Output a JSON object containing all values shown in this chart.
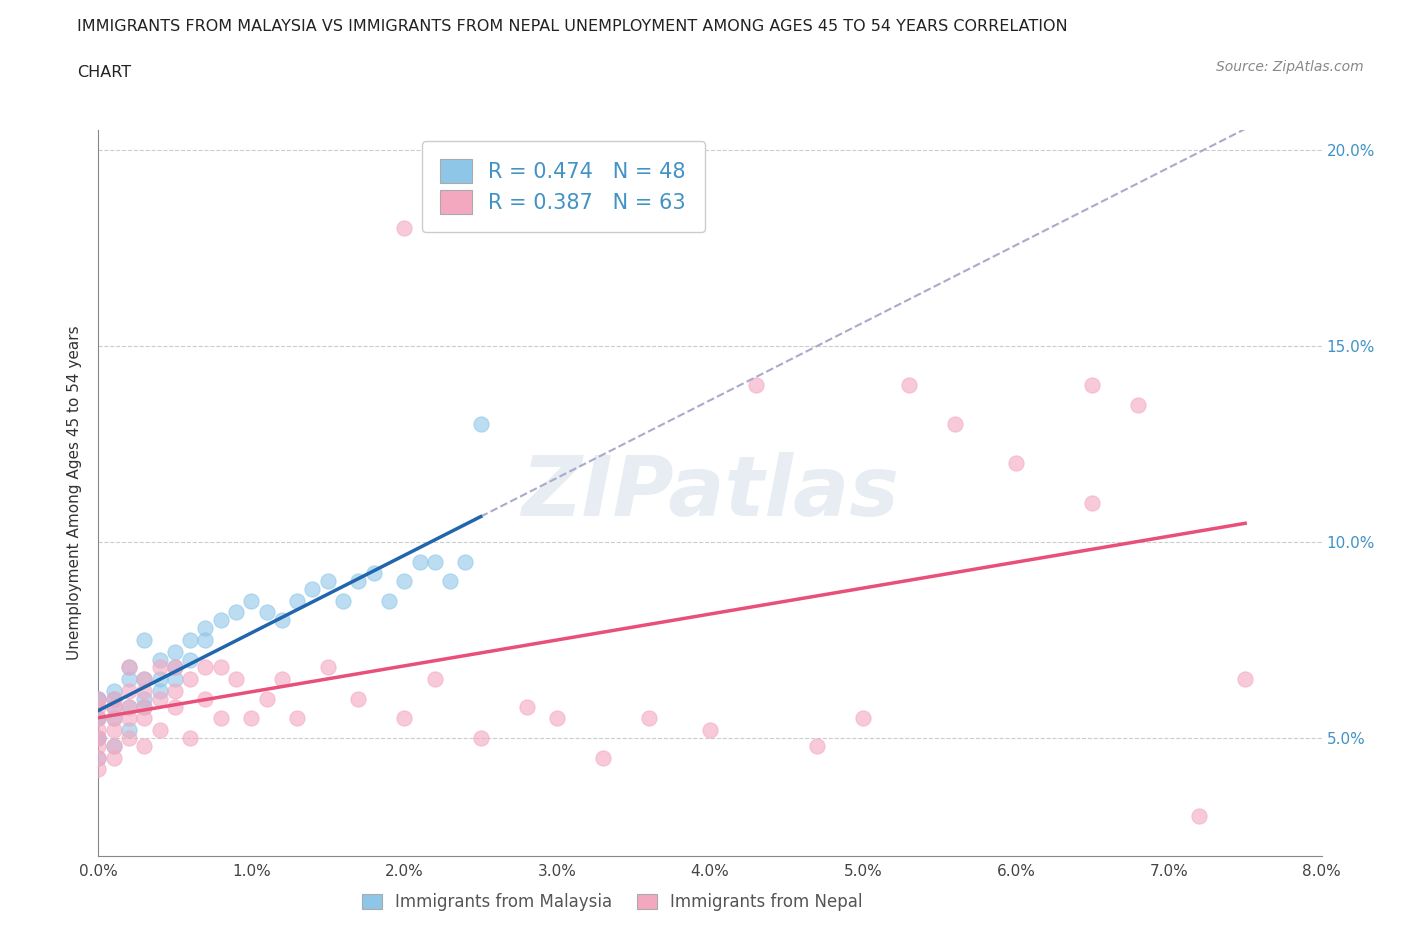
{
  "title_line1": "IMMIGRANTS FROM MALAYSIA VS IMMIGRANTS FROM NEPAL UNEMPLOYMENT AMONG AGES 45 TO 54 YEARS CORRELATION",
  "title_line2": "CHART",
  "source_text": "Source: ZipAtlas.com",
  "ylabel": "Unemployment Among Ages 45 to 54 years",
  "legend_label1": "Immigrants from Malaysia",
  "legend_label2": "Immigrants from Nepal",
  "R1": 0.474,
  "N1": 48,
  "R2": 0.387,
  "N2": 63,
  "color_malaysia": "#8ec6e8",
  "color_nepal": "#f4a8c0",
  "color_trend1": "#2166ac",
  "color_trend2": "#e8507a",
  "color_trend_dash": "#aaaacc",
  "xlim": [
    0.0,
    0.08
  ],
  "ylim": [
    0.02,
    0.205
  ],
  "xticks": [
    0.0,
    0.01,
    0.02,
    0.03,
    0.04,
    0.05,
    0.06,
    0.07,
    0.08
  ],
  "xticklabels": [
    "0.0%",
    "1.0%",
    "2.0%",
    "3.0%",
    "4.0%",
    "5.0%",
    "6.0%",
    "7.0%",
    "8.0%"
  ],
  "yticks": [
    0.05,
    0.1,
    0.15,
    0.2
  ],
  "yticklabels": [
    "5.0%",
    "10.0%",
    "15.0%",
    "20.0%"
  ],
  "watermark": "ZIPatlas",
  "malaysia_x": [
    0.0,
    0.0,
    0.0,
    0.0,
    0.0,
    0.0,
    0.0,
    0.001,
    0.001,
    0.001,
    0.001,
    0.001,
    0.002,
    0.002,
    0.002,
    0.002,
    0.003,
    0.003,
    0.003,
    0.003,
    0.004,
    0.004,
    0.004,
    0.005,
    0.005,
    0.005,
    0.006,
    0.006,
    0.007,
    0.007,
    0.008,
    0.009,
    0.01,
    0.011,
    0.012,
    0.013,
    0.014,
    0.015,
    0.016,
    0.017,
    0.018,
    0.019,
    0.02,
    0.021,
    0.022,
    0.023,
    0.024,
    0.025
  ],
  "malaysia_y": [
    0.055,
    0.06,
    0.05,
    0.045,
    0.055,
    0.06,
    0.05,
    0.058,
    0.062,
    0.055,
    0.048,
    0.06,
    0.065,
    0.058,
    0.052,
    0.068,
    0.065,
    0.075,
    0.06,
    0.058,
    0.07,
    0.065,
    0.062,
    0.072,
    0.068,
    0.065,
    0.075,
    0.07,
    0.075,
    0.078,
    0.08,
    0.082,
    0.085,
    0.082,
    0.08,
    0.085,
    0.088,
    0.09,
    0.085,
    0.09,
    0.092,
    0.085,
    0.09,
    0.095,
    0.095,
    0.09,
    0.095,
    0.13
  ],
  "nepal_x": [
    0.0,
    0.0,
    0.0,
    0.0,
    0.0,
    0.0,
    0.0,
    0.0,
    0.001,
    0.001,
    0.001,
    0.001,
    0.001,
    0.001,
    0.002,
    0.002,
    0.002,
    0.002,
    0.002,
    0.003,
    0.003,
    0.003,
    0.003,
    0.003,
    0.004,
    0.004,
    0.004,
    0.005,
    0.005,
    0.005,
    0.006,
    0.006,
    0.007,
    0.007,
    0.008,
    0.008,
    0.009,
    0.01,
    0.011,
    0.012,
    0.013,
    0.015,
    0.017,
    0.02,
    0.022,
    0.025,
    0.028,
    0.03,
    0.033,
    0.036,
    0.04,
    0.043,
    0.047,
    0.05,
    0.053,
    0.056,
    0.06,
    0.065,
    0.068,
    0.072,
    0.075,
    0.065,
    0.02
  ],
  "nepal_y": [
    0.05,
    0.048,
    0.055,
    0.045,
    0.052,
    0.058,
    0.042,
    0.06,
    0.055,
    0.048,
    0.06,
    0.052,
    0.058,
    0.045,
    0.058,
    0.062,
    0.05,
    0.055,
    0.068,
    0.058,
    0.065,
    0.048,
    0.062,
    0.055,
    0.06,
    0.068,
    0.052,
    0.062,
    0.058,
    0.068,
    0.065,
    0.05,
    0.06,
    0.068,
    0.055,
    0.068,
    0.065,
    0.055,
    0.06,
    0.065,
    0.055,
    0.068,
    0.06,
    0.055,
    0.065,
    0.05,
    0.058,
    0.055,
    0.045,
    0.055,
    0.052,
    0.14,
    0.048,
    0.055,
    0.14,
    0.13,
    0.12,
    0.14,
    0.135,
    0.03,
    0.065,
    0.11,
    0.18
  ]
}
